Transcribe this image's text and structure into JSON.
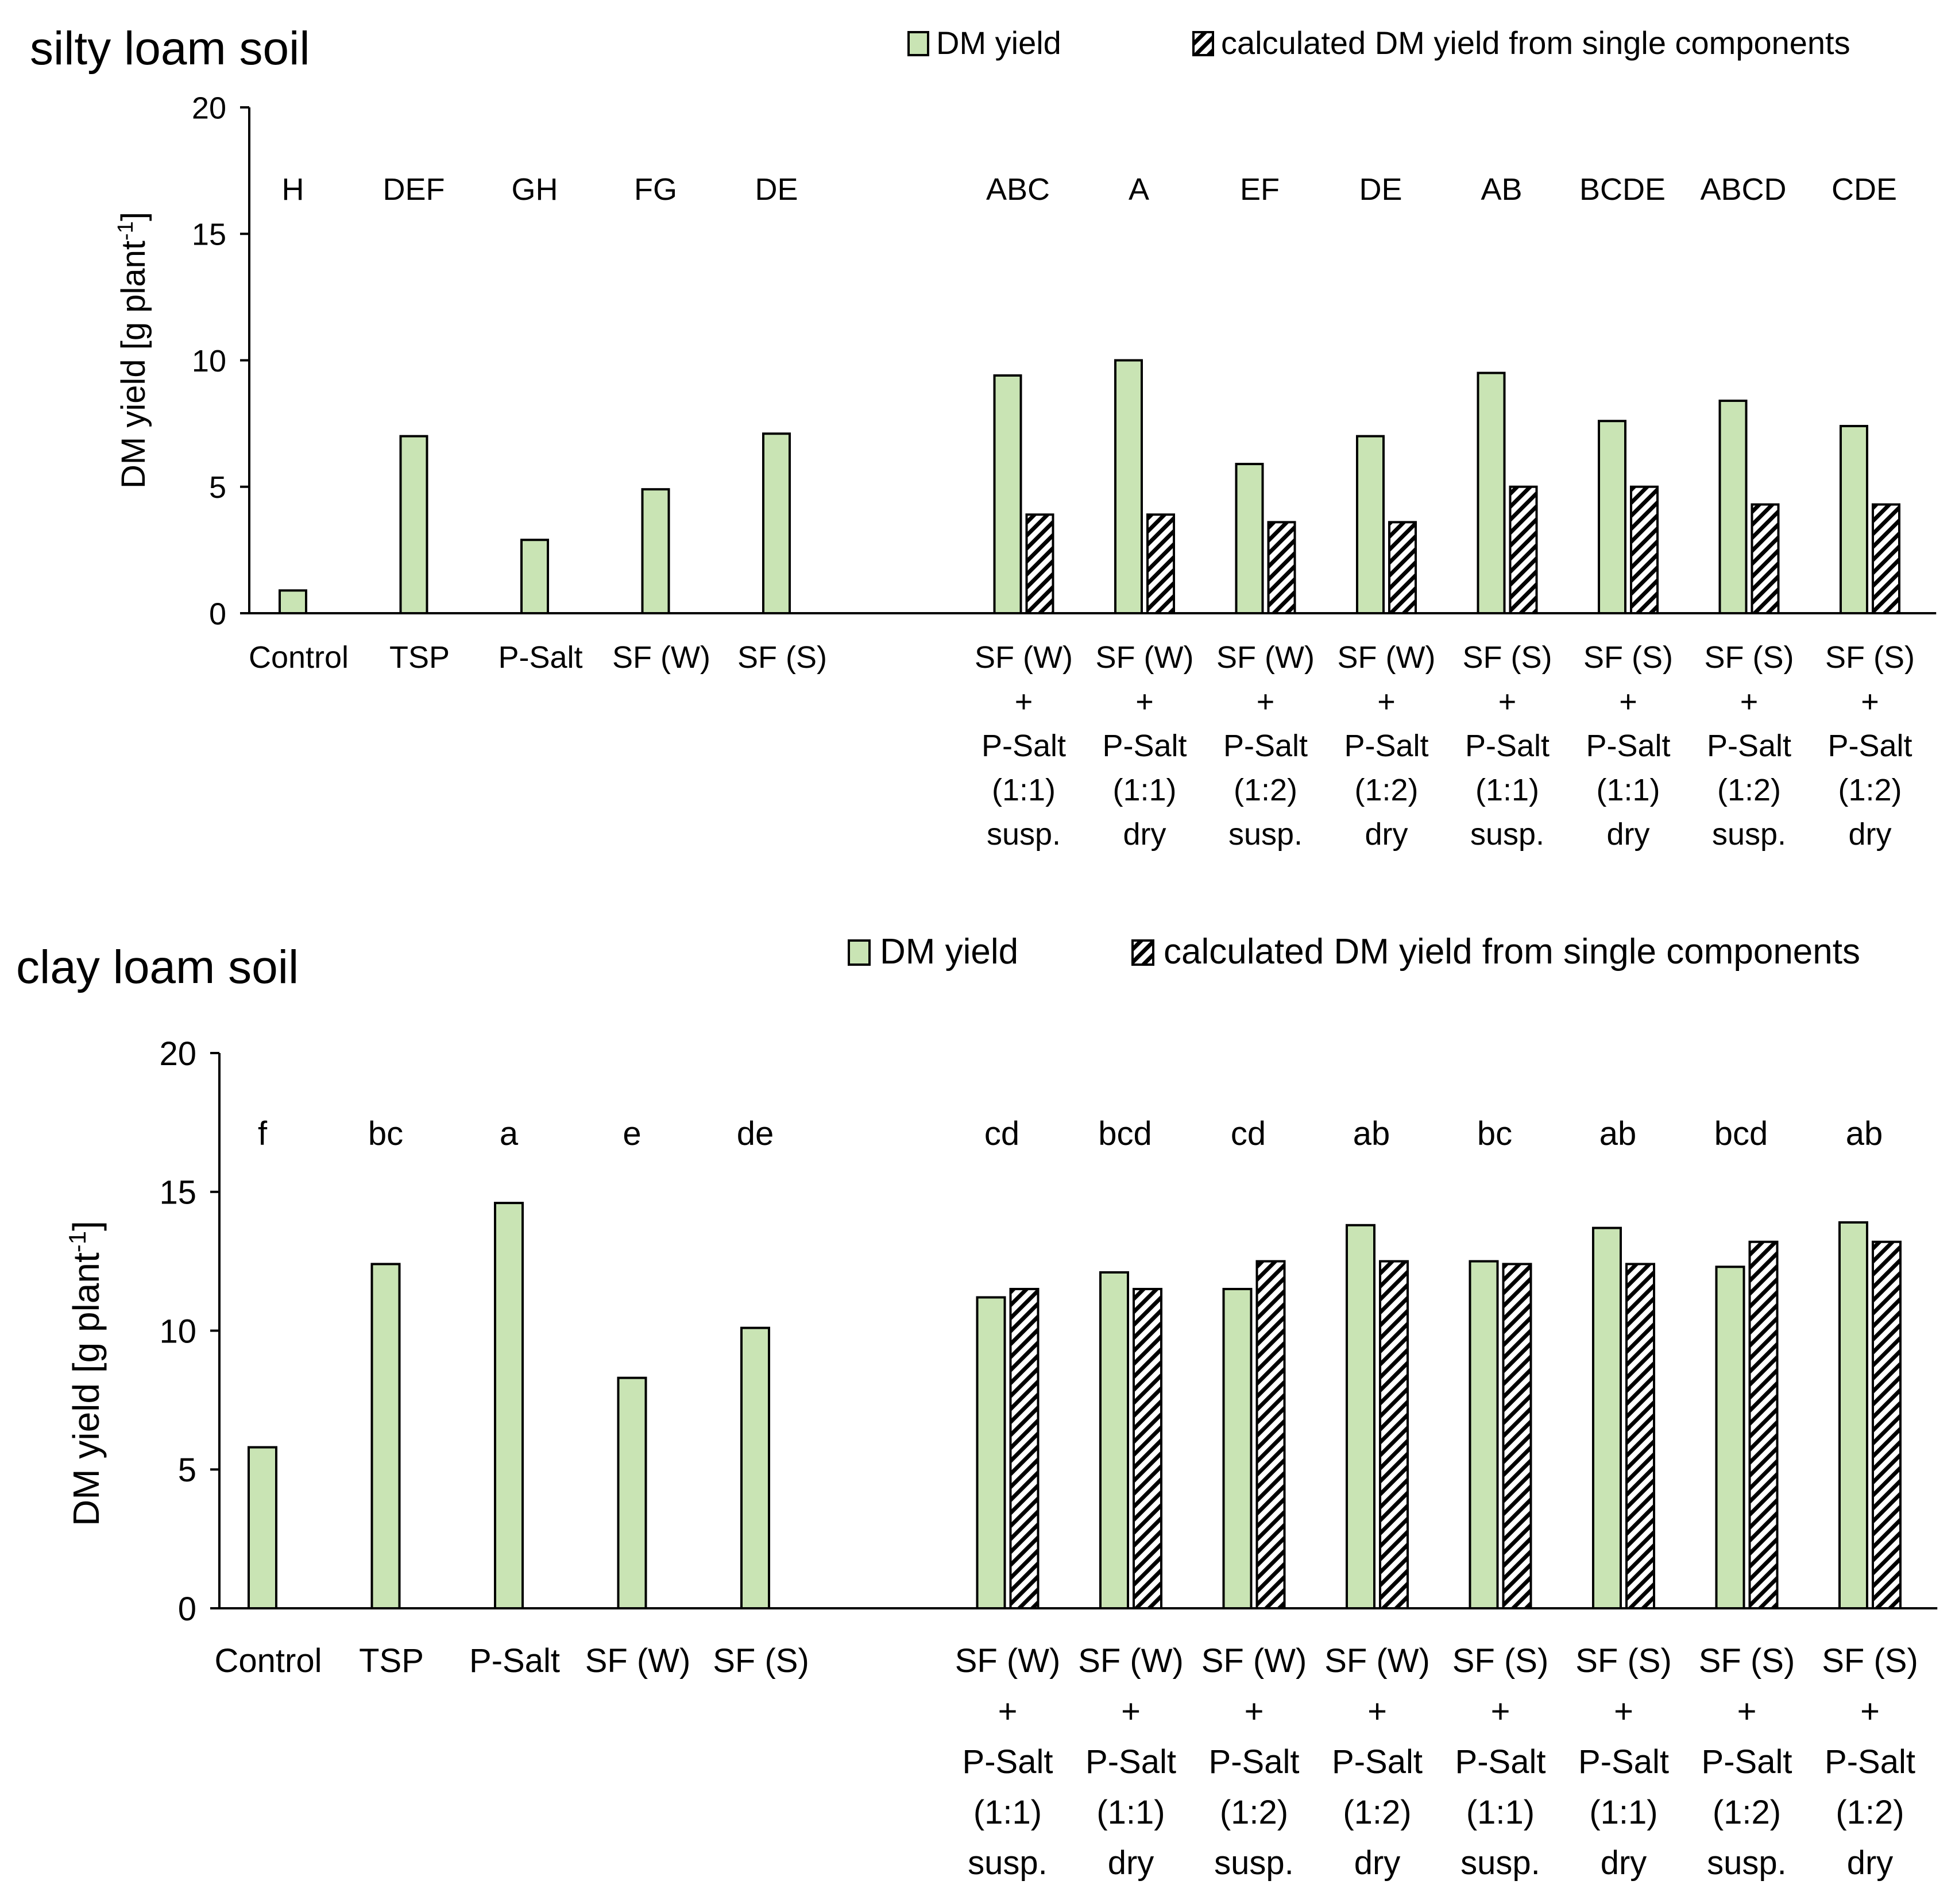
{
  "chart_data": [
    {
      "type": "bar",
      "title": "silty loam soil",
      "xlabel": "",
      "ylabel": "DM yield [g plant",
      "ylabel_sup": "-1",
      "ylabel_end": "]",
      "ylim": [
        0,
        20
      ],
      "yticks": [
        "0",
        "5",
        "10",
        "15",
        "20"
      ],
      "legend": {
        "position": "top-right"
      },
      "categories": [
        [
          "Control"
        ],
        [
          "TSP"
        ],
        [
          "P-Salt"
        ],
        [
          "SF (W)"
        ],
        [
          "SF (S)"
        ],
        [
          "SF (W)",
          "+",
          "P-Salt",
          "(1:1)",
          "susp."
        ],
        [
          "SF (W)",
          "+",
          "P-Salt",
          "(1:1)",
          "dry"
        ],
        [
          "SF (W)",
          "+",
          "P-Salt",
          "(1:2)",
          "susp."
        ],
        [
          "SF (W)",
          "+",
          "P-Salt",
          "(1:2)",
          "dry"
        ],
        [
          "SF (S)",
          "+",
          "P-Salt",
          "(1:1)",
          "susp."
        ],
        [
          "SF (S)",
          "+",
          "P-Salt",
          "(1:1)",
          "dry"
        ],
        [
          "SF (S)",
          "+",
          "P-Salt",
          "(1:2)",
          "susp."
        ],
        [
          "SF (S)",
          "+",
          "P-Salt",
          "(1:2)",
          "dry"
        ]
      ],
      "significance": [
        "H",
        "DEF",
        "GH",
        "FG",
        "DE",
        "ABC",
        "A",
        "EF",
        "DE",
        "AB",
        "BCDE",
        "ABCD",
        "CDE"
      ],
      "series": [
        {
          "name": "DM yield",
          "values": [
            0.9,
            7.0,
            2.9,
            4.9,
            7.1,
            9.4,
            10.0,
            5.9,
            7.0,
            9.5,
            7.6,
            8.4,
            7.4
          ]
        },
        {
          "name": "calculated DM yield from single components",
          "values": [
            null,
            null,
            null,
            null,
            null,
            3.9,
            3.9,
            3.6,
            3.6,
            5.0,
            5.0,
            4.3,
            4.3
          ]
        }
      ],
      "colors": {
        "measured": "#c9e4b4",
        "calculated_hatch": "#000000"
      }
    },
    {
      "type": "bar",
      "title": "clay loam soil",
      "xlabel": "",
      "ylabel": "DM yield [g plant",
      "ylabel_sup": "-1",
      "ylabel_end": "]",
      "ylim": [
        0,
        20
      ],
      "yticks": [
        "0",
        "5",
        "10",
        "15",
        "20"
      ],
      "legend": {
        "position": "top-right"
      },
      "categories": [
        [
          "Control"
        ],
        [
          "TSP"
        ],
        [
          "P-Salt"
        ],
        [
          "SF (W)"
        ],
        [
          "SF (S)"
        ],
        [
          "SF (W)",
          "+",
          "P-Salt",
          "(1:1)",
          "susp."
        ],
        [
          "SF (W)",
          "+",
          "P-Salt",
          "(1:1)",
          "dry"
        ],
        [
          "SF (W)",
          "+",
          "P-Salt",
          "(1:2)",
          "susp."
        ],
        [
          "SF (W)",
          "+",
          "P-Salt",
          "(1:2)",
          "dry"
        ],
        [
          "SF (S)",
          "+",
          "P-Salt",
          "(1:1)",
          "susp."
        ],
        [
          "SF (S)",
          "+",
          "P-Salt",
          "(1:1)",
          "dry"
        ],
        [
          "SF (S)",
          "+",
          "P-Salt",
          "(1:2)",
          "susp."
        ],
        [
          "SF (S)",
          "+",
          "P-Salt",
          "(1:2)",
          "dry"
        ]
      ],
      "significance": [
        "f",
        "bc",
        "a",
        "e",
        "de",
        "cd",
        "bcd",
        "cd",
        "ab",
        "bc",
        "ab",
        "bcd",
        "ab"
      ],
      "series": [
        {
          "name": "DM yield",
          "values": [
            5.8,
            12.4,
            14.6,
            8.3,
            10.1,
            11.2,
            12.1,
            11.5,
            13.8,
            12.5,
            13.7,
            12.3,
            13.9
          ]
        },
        {
          "name": "calculated DM yield from single components",
          "values": [
            null,
            null,
            null,
            null,
            null,
            11.5,
            11.5,
            12.5,
            12.5,
            12.4,
            12.4,
            13.2,
            13.2
          ]
        }
      ],
      "colors": {
        "measured": "#c9e4b4",
        "calculated_hatch": "#000000"
      }
    }
  ]
}
